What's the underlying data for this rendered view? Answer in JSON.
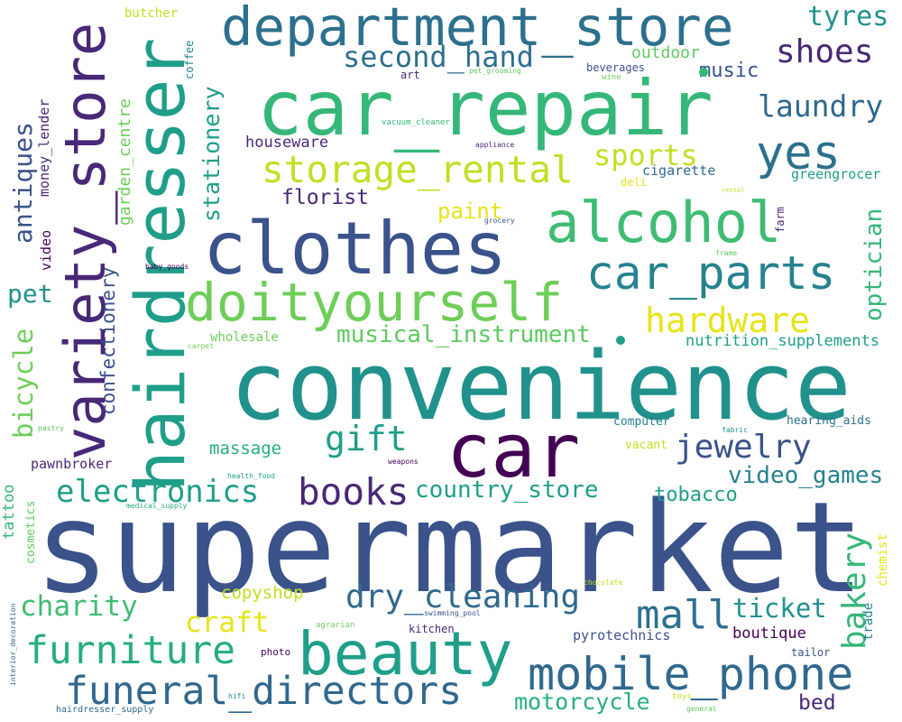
{
  "colors": {
    "background": "#ffffff",
    "purple": "#440154",
    "indigo": "#482878",
    "blue": "#3b528b",
    "slate": "#31688e",
    "teal": "#26828e",
    "sea": "#1f9e89",
    "green": "#35b779",
    "lime": "#6ece58",
    "chartreuse": "#b5de2b",
    "yellow": "#fde725"
  },
  "words": [
    {
      "text": "supermarket"
    },
    {
      "text": "convenience"
    },
    {
      "text": "car_repair"
    },
    {
      "text": "hairdresser"
    },
    {
      "text": "clothes"
    },
    {
      "text": "car"
    },
    {
      "text": "variety_store"
    },
    {
      "text": "department_store"
    },
    {
      "text": "beauty"
    },
    {
      "text": "alcohol"
    },
    {
      "text": "doityourself"
    },
    {
      "text": "car_parts"
    },
    {
      "text": "mobile_phone"
    },
    {
      "text": "furniture"
    },
    {
      "text": "funeral_directors"
    },
    {
      "text": "yes"
    },
    {
      "text": "storage_rental"
    },
    {
      "text": "electronics"
    },
    {
      "text": "books"
    },
    {
      "text": "hardware"
    },
    {
      "text": "mall"
    },
    {
      "text": "dry_cleaning"
    },
    {
      "text": "jewelry"
    },
    {
      "text": "gift"
    },
    {
      "text": "bakery"
    },
    {
      "text": "second_hand"
    },
    {
      "text": "shoes"
    },
    {
      "text": "laundry"
    },
    {
      "text": "sports"
    },
    {
      "text": "tyres"
    },
    {
      "text": "charity"
    },
    {
      "text": "craft"
    },
    {
      "text": "musical_instrument"
    },
    {
      "text": "video_games"
    },
    {
      "text": "country_store"
    },
    {
      "text": "ticket"
    },
    {
      "text": "antiques"
    },
    {
      "text": "bicycle"
    },
    {
      "text": "stationery"
    },
    {
      "text": "optician"
    },
    {
      "text": "pet"
    },
    {
      "text": "florist"
    },
    {
      "text": "paint"
    },
    {
      "text": "motorcycle"
    },
    {
      "text": "confectionery"
    },
    {
      "text": "tobacco"
    },
    {
      "text": "music"
    },
    {
      "text": "outdoor"
    },
    {
      "text": "massage"
    },
    {
      "text": "copyshop"
    },
    {
      "text": "bed"
    },
    {
      "text": "garden_centre"
    },
    {
      "text": "houseware"
    },
    {
      "text": "nutrition_supplements"
    },
    {
      "text": "boutique"
    },
    {
      "text": "cigarette"
    },
    {
      "text": "money_lender"
    },
    {
      "text": "tattoo"
    },
    {
      "text": "pawnbroker"
    },
    {
      "text": "pyrotechnics"
    },
    {
      "text": "greengrocer"
    },
    {
      "text": "trade"
    },
    {
      "text": "chemist"
    },
    {
      "text": "wholesale"
    },
    {
      "text": "video"
    },
    {
      "text": "butcher"
    },
    {
      "text": "cosmetics"
    },
    {
      "text": "hearing_aids"
    },
    {
      "text": "vacant"
    },
    {
      "text": "computer"
    },
    {
      "text": "beverages"
    },
    {
      "text": "farm"
    },
    {
      "text": "deli"
    },
    {
      "text": "coffee"
    },
    {
      "text": "art"
    },
    {
      "text": "kitchen"
    },
    {
      "text": "photo"
    },
    {
      "text": "tailor"
    },
    {
      "text": "wine"
    },
    {
      "text": "pet_grooming"
    },
    {
      "text": "vacuum_cleaner"
    },
    {
      "text": "appliance"
    },
    {
      "text": "grocery"
    },
    {
      "text": "rental"
    },
    {
      "text": "frame"
    },
    {
      "text": "baby_goods"
    },
    {
      "text": "carpet"
    },
    {
      "text": "pastry"
    },
    {
      "text": "health_food"
    },
    {
      "text": "weapons"
    },
    {
      "text": "medical_supply"
    },
    {
      "text": "fabric"
    },
    {
      "text": "chocolate"
    },
    {
      "text": "agrarian"
    },
    {
      "text": "swimming_pool"
    },
    {
      "text": "interior_decoration"
    },
    {
      "text": "hifi"
    },
    {
      "text": "hairdresser_supply"
    },
    {
      "text": "toys"
    },
    {
      "text": "general"
    }
  ]
}
